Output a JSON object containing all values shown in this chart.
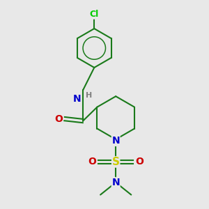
{
  "background_color": "#e8e8e8",
  "atom_colors": {
    "C": "#1a7a1a",
    "N": "#0000cc",
    "O": "#cc0000",
    "S": "#cccc00",
    "Cl": "#00cc00",
    "H": "#808080"
  },
  "bond_color": "#1a7a1a",
  "figsize": [
    3.0,
    3.0
  ],
  "dpi": 100
}
